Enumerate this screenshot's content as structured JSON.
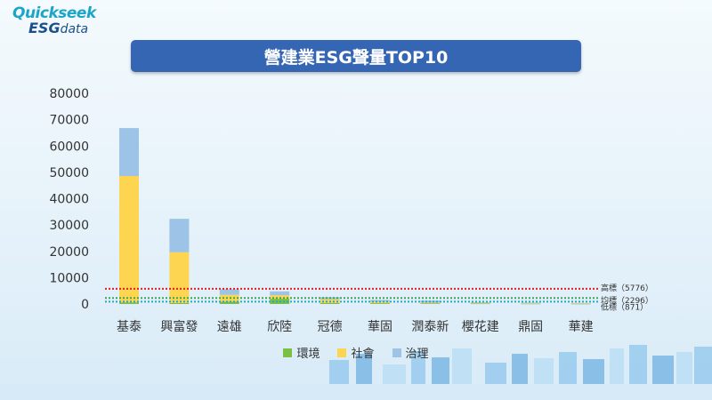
{
  "logo": {
    "line1": "Quickseek",
    "line2a": "ESG",
    "line2b": "data"
  },
  "chart_data": {
    "type": "bar",
    "stacked": true,
    "title": "營建業ESG聲量TOP10",
    "categories": [
      "基泰",
      "興富發",
      "遠雄",
      "欣陸",
      "冠德",
      "華固",
      "潤泰新",
      "櫻花建",
      "鼎固",
      "華建"
    ],
    "series": [
      {
        "name": "環境",
        "color": "#7ac143",
        "values": [
          600,
          350,
          900,
          2000,
          400,
          300,
          250,
          150,
          100,
          80
        ]
      },
      {
        "name": "社會",
        "color": "#fdd551",
        "values": [
          48000,
          19300,
          2600,
          1300,
          1400,
          600,
          250,
          200,
          150,
          100
        ]
      },
      {
        "name": "治理",
        "color": "#9dc3e6",
        "values": [
          18200,
          12700,
          2100,
          1500,
          800,
          600,
          800,
          300,
          250,
          200
        ]
      }
    ],
    "ylim": [
      0,
      80000
    ],
    "yticks": [
      0,
      10000,
      20000,
      30000,
      40000,
      50000,
      60000,
      70000,
      80000
    ],
    "grid": false,
    "legend_position": "bottom",
    "reference_lines": [
      {
        "label": "高標（5776）",
        "value": 5776,
        "color": "#e02020"
      },
      {
        "label": "均標（2296）",
        "value": 2296,
        "color": "#3aa84a"
      },
      {
        "label": "低標（871）",
        "value": 871,
        "color": "#2aa5c8"
      }
    ]
  }
}
